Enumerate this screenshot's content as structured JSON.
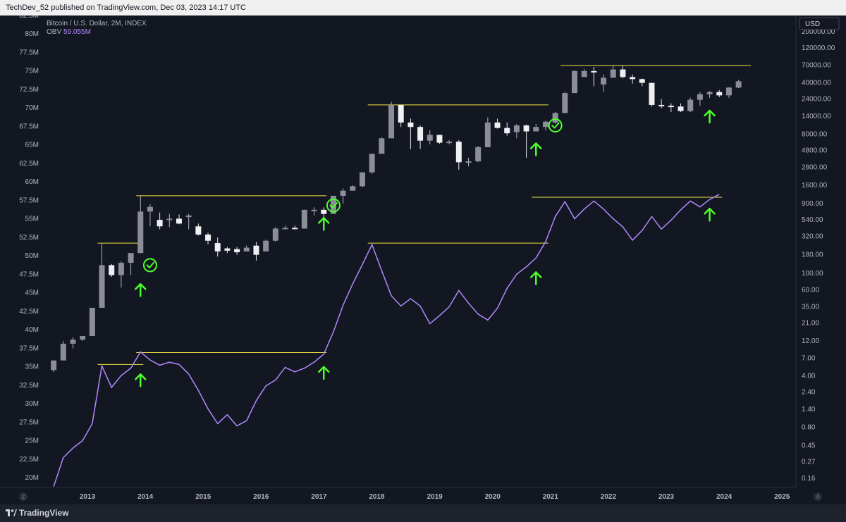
{
  "header": {
    "published": "TechDev_52 published on TradingView.com, Dec 03, 2023 14:17 UTC"
  },
  "footer": {
    "brand": "TradingView"
  },
  "chart_data": {
    "type": "line",
    "legend": {
      "symbol": "Bitcoin / U.S. Dollar, 2M, INDEX",
      "indicator_name": "OBV",
      "indicator_value": "59.055M"
    },
    "x_ticks": [
      "2013",
      "2014",
      "2015",
      "2016",
      "2017",
      "2018",
      "2019",
      "2020",
      "2021",
      "2022",
      "2023",
      "2024",
      "2025"
    ],
    "left_axis_ticks": [
      "82.5M",
      "80M",
      "77.5M",
      "75M",
      "72.5M",
      "70M",
      "67.5M",
      "65M",
      "62.5M",
      "60M",
      "57.5M",
      "55M",
      "52.5M",
      "50M",
      "47.5M",
      "45M",
      "42.5M",
      "40M",
      "37.5M",
      "35M",
      "32.5M",
      "30M",
      "27.5M",
      "25M",
      "22.5M",
      "20M"
    ],
    "right_axis_ticks": [
      "200000.00",
      "120000.00",
      "70000.00",
      "40000.00",
      "24000.00",
      "14000.00",
      "8000.00",
      "4800.00",
      "2800.00",
      "1600.00",
      "900.00",
      "540.00",
      "320.00",
      "180.00",
      "100.00",
      "60.00",
      "35.00",
      "21.00",
      "12.00",
      "7.00",
      "4.00",
      "2.40",
      "1.40",
      "0.80",
      "0.45",
      "0.27",
      "0.16"
    ],
    "currency_label": "USD",
    "corner_labels": {
      "left": "Z",
      "right": "A"
    },
    "obv_line": {
      "name": "OBV",
      "color": "#b388ff",
      "x": [
        "2012-06",
        "2012-08",
        "2012-10",
        "2012-12",
        "2013-02",
        "2013-04",
        "2013-06",
        "2013-08",
        "2013-10",
        "2013-12",
        "2014-02",
        "2014-04",
        "2014-06",
        "2014-08",
        "2014-10",
        "2014-12",
        "2015-02",
        "2015-04",
        "2015-06",
        "2015-08",
        "2015-10",
        "2015-12",
        "2016-02",
        "2016-04",
        "2016-06",
        "2016-08",
        "2016-10",
        "2016-12",
        "2017-02",
        "2017-04",
        "2017-06",
        "2017-08",
        "2017-10",
        "2017-12",
        "2018-02",
        "2018-04",
        "2018-06",
        "2018-08",
        "2018-10",
        "2018-12",
        "2019-02",
        "2019-04",
        "2019-06",
        "2019-08",
        "2019-10",
        "2019-12",
        "2020-02",
        "2020-04",
        "2020-06",
        "2020-08",
        "2020-10",
        "2020-12",
        "2021-02",
        "2021-04",
        "2021-06",
        "2021-08",
        "2021-10",
        "2021-12",
        "2022-02",
        "2022-04",
        "2022-06",
        "2022-08",
        "2022-10",
        "2022-12",
        "2023-02",
        "2023-04",
        "2023-06",
        "2023-08",
        "2023-10",
        "2023-12"
      ],
      "values": [
        18.8,
        22.7,
        24.0,
        25.0,
        27.3,
        35.1,
        32.2,
        33.8,
        34.8,
        37.0,
        35.9,
        35.2,
        35.6,
        35.3,
        34.0,
        31.8,
        29.3,
        27.3,
        28.5,
        27.0,
        27.7,
        30.4,
        32.4,
        33.2,
        34.9,
        34.3,
        34.8,
        35.6,
        36.7,
        39.7,
        43.3,
        46.2,
        48.8,
        51.5,
        48.0,
        44.6,
        43.2,
        44.2,
        43.2,
        40.8,
        41.9,
        43.1,
        45.3,
        43.6,
        42.1,
        41.3,
        42.9,
        45.6,
        47.5,
        48.5,
        49.7,
        51.9,
        55.3,
        57.3,
        55.0,
        56.3,
        57.4,
        56.3,
        55.0,
        53.9,
        52.1,
        53.4,
        55.3,
        53.6,
        54.8,
        56.2,
        57.4,
        56.6,
        57.6,
        58.3
      ]
    },
    "price_candles": [
      {
        "t": "2012-06",
        "o": 4.8,
        "h": 5.5,
        "l": 4.5,
        "c": 6.5
      },
      {
        "t": "2012-08",
        "o": 6.5,
        "h": 12,
        "l": 7,
        "c": 11
      },
      {
        "t": "2012-10",
        "o": 11,
        "h": 13.5,
        "l": 9.5,
        "c": 12.5
      },
      {
        "t": "2012-12",
        "o": 12.5,
        "h": 14,
        "l": 12,
        "c": 14
      },
      {
        "t": "2013-02",
        "o": 14,
        "h": 34,
        "l": 22,
        "c": 34
      },
      {
        "t": "2013-04",
        "o": 34,
        "h": 260,
        "l": 60,
        "c": 130
      },
      {
        "t": "2013-06",
        "o": 130,
        "h": 135,
        "l": 90,
        "c": 95
      },
      {
        "t": "2013-08",
        "o": 95,
        "h": 145,
        "l": 64,
        "c": 140
      },
      {
        "t": "2013-10",
        "o": 140,
        "h": 190,
        "l": 95,
        "c": 190
      },
      {
        "t": "2013-12",
        "o": 190,
        "h": 1150,
        "l": 190,
        "c": 700
      },
      {
        "t": "2014-02",
        "o": 700,
        "h": 880,
        "l": 440,
        "c": 810
      },
      {
        "t": "2014-04",
        "o": 540,
        "h": 680,
        "l": 400,
        "c": 440
      },
      {
        "t": "2014-06",
        "o": 540,
        "h": 650,
        "l": 430,
        "c": 560
      },
      {
        "t": "2014-08",
        "o": 560,
        "h": 640,
        "l": 470,
        "c": 480
      },
      {
        "t": "2014-10",
        "o": 590,
        "h": 650,
        "l": 400,
        "c": 620
      },
      {
        "t": "2014-12",
        "o": 440,
        "h": 480,
        "l": 330,
        "c": 340
      },
      {
        "t": "2015-02",
        "o": 340,
        "h": 360,
        "l": 250,
        "c": 280
      },
      {
        "t": "2015-04",
        "o": 260,
        "h": 310,
        "l": 170,
        "c": 200
      },
      {
        "t": "2015-06",
        "o": 220,
        "h": 230,
        "l": 190,
        "c": 205
      },
      {
        "t": "2015-08",
        "o": 215,
        "h": 230,
        "l": 180,
        "c": 195
      },
      {
        "t": "2015-10",
        "o": 200,
        "h": 240,
        "l": 200,
        "c": 225
      },
      {
        "t": "2015-12",
        "o": 240,
        "h": 270,
        "l": 150,
        "c": 180
      },
      {
        "t": "2016-02",
        "o": 200,
        "h": 290,
        "l": 200,
        "c": 280
      },
      {
        "t": "2016-04",
        "o": 280,
        "h": 430,
        "l": 270,
        "c": 410
      },
      {
        "t": "2016-06",
        "o": 410,
        "h": 450,
        "l": 400,
        "c": 420
      },
      {
        "t": "2016-08",
        "o": 420,
        "h": 450,
        "l": 410,
        "c": 410
      },
      {
        "t": "2016-10",
        "o": 410,
        "h": 740,
        "l": 520,
        "c": 740
      },
      {
        "t": "2016-12",
        "o": 740,
        "h": 800,
        "l": 620,
        "c": 740
      },
      {
        "t": "2017-02",
        "o": 740,
        "h": 800,
        "l": 560,
        "c": 650
      },
      {
        "t": "2017-04",
        "o": 650,
        "h": 1150,
        "l": 670,
        "c": 1150
      },
      {
        "t": "2017-06",
        "o": 1150,
        "h": 1450,
        "l": 900,
        "c": 1350
      },
      {
        "t": "2017-08",
        "o": 1350,
        "h": 1600,
        "l": 1350,
        "c": 1550
      },
      {
        "t": "2017-10",
        "o": 1550,
        "h": 2400,
        "l": 1500,
        "c": 2400
      },
      {
        "t": "2017-12",
        "o": 2400,
        "h": 4300,
        "l": 2300,
        "c": 4300
      },
      {
        "t": "2018-02",
        "o": 4300,
        "h": 7200,
        "l": 4500,
        "c": 7000
      },
      {
        "t": "2018-04",
        "o": 7000,
        "h": 22000,
        "l": 8500,
        "c": 20000
      },
      {
        "t": "2018-06",
        "o": 20000,
        "h": 19000,
        "l": 10000,
        "c": 11500
      },
      {
        "t": "2018-08",
        "o": 11500,
        "h": 13000,
        "l": 5000,
        "c": 10000
      },
      {
        "t": "2018-10",
        "o": 10000,
        "h": 10500,
        "l": 5000,
        "c": 6500
      },
      {
        "t": "2018-12",
        "o": 6500,
        "h": 9000,
        "l": 5800,
        "c": 7800
      },
      {
        "t": "2019-02",
        "o": 7800,
        "h": 7800,
        "l": 5900,
        "c": 6100
      },
      {
        "t": "2019-04",
        "o": 6100,
        "h": 6600,
        "l": 5800,
        "c": 6300
      },
      {
        "t": "2019-06",
        "o": 6300,
        "h": 6600,
        "l": 2600,
        "c": 3300
      },
      {
        "t": "2019-08",
        "o": 3300,
        "h": 3800,
        "l": 2900,
        "c": 3400
      },
      {
        "t": "2019-10",
        "o": 3400,
        "h": 5500,
        "l": 3300,
        "c": 5300
      },
      {
        "t": "2019-12",
        "o": 5300,
        "h": 13500,
        "l": 5300,
        "c": 11500
      },
      {
        "t": "2020-02",
        "o": 11500,
        "h": 13000,
        "l": 9500,
        "c": 9700
      },
      {
        "t": "2020-04",
        "o": 9700,
        "h": 11500,
        "l": 7600,
        "c": 8200
      },
      {
        "t": "2020-06",
        "o": 8500,
        "h": 11000,
        "l": 7000,
        "c": 10500
      },
      {
        "t": "2020-08",
        "o": 10500,
        "h": 10800,
        "l": 3800,
        "c": 8700
      },
      {
        "t": "2020-10",
        "o": 8700,
        "h": 11000,
        "l": 8700,
        "c": 10000
      },
      {
        "t": "2020-12",
        "o": 10000,
        "h": 12200,
        "l": 9000,
        "c": 11800
      },
      {
        "t": "2021-02",
        "o": 11500,
        "h": 16000,
        "l": 11000,
        "c": 15500
      },
      {
        "t": "2021-04",
        "o": 15500,
        "h": 30000,
        "l": 17000,
        "c": 29000
      },
      {
        "t": "2021-06",
        "o": 29000,
        "h": 60000,
        "l": 30000,
        "c": 58000
      },
      {
        "t": "2021-08",
        "o": 48000,
        "h": 62000,
        "l": 50000,
        "c": 58000
      },
      {
        "t": "2021-10",
        "o": 58000,
        "h": 66000,
        "l": 36000,
        "c": 57000
      },
      {
        "t": "2021-12",
        "o": 38000,
        "h": 52000,
        "l": 30000,
        "c": 47000
      },
      {
        "t": "2022-02",
        "o": 47000,
        "h": 69000,
        "l": 50000,
        "c": 61000
      },
      {
        "t": "2022-04",
        "o": 61000,
        "h": 69000,
        "l": 46000,
        "c": 48000
      },
      {
        "t": "2022-06",
        "o": 48000,
        "h": 52000,
        "l": 39000,
        "c": 45000
      },
      {
        "t": "2022-08",
        "o": 45000,
        "h": 46000,
        "l": 36000,
        "c": 40000
      },
      {
        "t": "2022-10",
        "o": 40000,
        "h": 40000,
        "l": 19000,
        "c": 20000
      },
      {
        "t": "2022-12",
        "o": 20000,
        "h": 24000,
        "l": 18000,
        "c": 19500
      },
      {
        "t": "2023-02",
        "o": 19500,
        "h": 21000,
        "l": 16000,
        "c": 19000
      },
      {
        "t": "2023-04",
        "o": 19000,
        "h": 21000,
        "l": 16000,
        "c": 16500
      },
      {
        "t": "2023-06",
        "o": 16500,
        "h": 25000,
        "l": 16000,
        "c": 23500
      },
      {
        "t": "2023-08",
        "o": 23500,
        "h": 30000,
        "l": 19500,
        "c": 28000
      },
      {
        "t": "2023-10",
        "o": 28000,
        "h": 31000,
        "l": 25000,
        "c": 30000
      },
      {
        "t": "2023-12",
        "o": 30000,
        "h": 32000,
        "l": 25500,
        "c": 27000
      },
      {
        "t": "2024-02",
        "o": 27000,
        "h": 35000,
        "l": 25000,
        "c": 34500
      },
      {
        "t": "2024-04",
        "o": 34500,
        "h": 44000,
        "l": 34000,
        "c": 42000
      }
    ],
    "obv_levels": [
      {
        "from": "2013-04",
        "to": "2013-12",
        "value": 35.3
      },
      {
        "from": "2013-12",
        "to": "2017-02",
        "value": 36.9
      },
      {
        "from": "2017-12",
        "to": "2020-12",
        "value": 51.7
      },
      {
        "from": "2020-10",
        "to": "2023-12",
        "value": 57.9
      }
    ],
    "price_levels": [
      {
        "from": "2013-04",
        "to": "2013-12",
        "value": 260
      },
      {
        "from": "2013-12",
        "to": "2017-02",
        "value": 1150
      },
      {
        "from": "2017-12",
        "to": "2020-12",
        "value": 20000
      },
      {
        "from": "2021-04",
        "to": "2024-06",
        "value": 69000
      }
    ],
    "arrows": [
      {
        "t": "2013-12",
        "series": "price",
        "value": 60
      },
      {
        "t": "2017-02",
        "series": "price",
        "value": 480
      },
      {
        "t": "2020-10",
        "series": "price",
        "value": 5000
      },
      {
        "t": "2023-10",
        "series": "price",
        "value": 14000
      },
      {
        "t": "2013-12",
        "series": "obv",
        "value": 33.2
      },
      {
        "t": "2017-02",
        "series": "obv",
        "value": 34.2
      },
      {
        "t": "2020-10",
        "series": "obv",
        "value": 47.0
      },
      {
        "t": "2023-10",
        "series": "obv",
        "value": 55.6
      }
    ],
    "checkmarks": [
      {
        "t": "2014-02",
        "value": 130
      },
      {
        "t": "2017-04",
        "value": 850
      },
      {
        "t": "2021-02",
        "value": 10500
      }
    ]
  }
}
